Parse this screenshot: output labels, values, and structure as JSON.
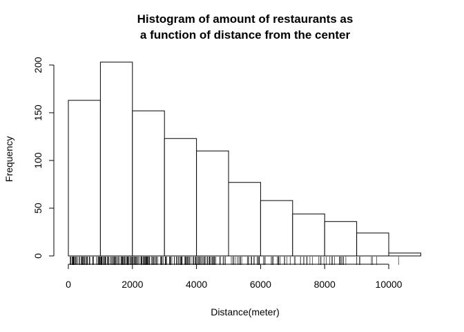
{
  "chart_data": {
    "type": "bar",
    "title": [
      "Histogram of amount of restaurants as",
      "a function of distance from the center"
    ],
    "xlabel": "Distance(meter)",
    "ylabel": "Frequency",
    "bins": [
      [
        0,
        1000
      ],
      [
        1000,
        2000
      ],
      [
        2000,
        3000
      ],
      [
        3000,
        4000
      ],
      [
        4000,
        5000
      ],
      [
        5000,
        6000
      ],
      [
        6000,
        7000
      ],
      [
        7000,
        8000
      ],
      [
        8000,
        9000
      ],
      [
        9000,
        10000
      ],
      [
        10000,
        11000
      ]
    ],
    "values": [
      163,
      203,
      152,
      123,
      110,
      77,
      58,
      44,
      36,
      24,
      3
    ],
    "x_ticks": [
      "0",
      "2000",
      "4000",
      "6000",
      "8000",
      "10000"
    ],
    "y_ticks": [
      "0",
      "50",
      "100",
      "150",
      "200"
    ],
    "xlim": [
      0,
      10000
    ],
    "ylim": [
      0,
      200
    ],
    "grid": false,
    "rug": true
  }
}
